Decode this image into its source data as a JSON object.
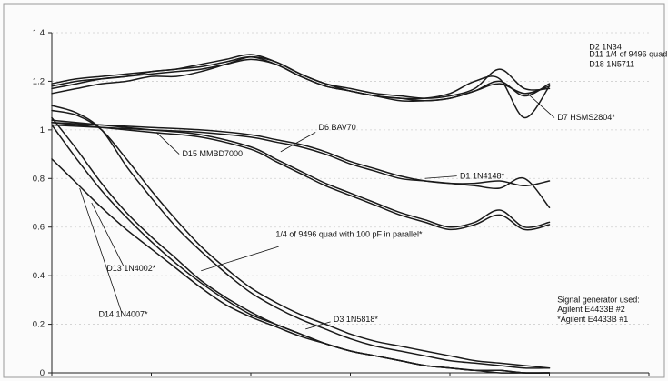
{
  "chart_data": {
    "type": "line",
    "title": "",
    "xlabel": "",
    "ylabel": "",
    "xlim": [
      0,
      600
    ],
    "ylim": [
      0,
      1.4
    ],
    "xticks": [
      0,
      100,
      200,
      300,
      400,
      500,
      600
    ],
    "yticks": [
      0,
      0.2,
      0.4,
      0.6,
      0.8,
      1,
      1.2,
      1.4
    ],
    "ytick_labels": [
      "0",
      "0.2",
      "0.4",
      "0.6",
      "0.8",
      "1",
      "1.2",
      "1.4"
    ],
    "grid": "horizontal",
    "series": [
      {
        "name": "D2 1N34",
        "x": [
          0,
          25,
          50,
          75,
          100,
          125,
          150,
          175,
          200,
          225,
          250,
          275,
          300,
          325,
          350,
          375,
          400,
          425,
          450,
          475,
          500
        ],
        "y": [
          1.15,
          1.17,
          1.19,
          1.2,
          1.22,
          1.22,
          1.24,
          1.27,
          1.3,
          1.28,
          1.23,
          1.19,
          1.17,
          1.15,
          1.14,
          1.13,
          1.14,
          1.17,
          1.25,
          1.17,
          1.17
        ]
      },
      {
        "name": "D11 1/4 of 9496 quad",
        "x": [
          0,
          25,
          50,
          75,
          100,
          125,
          150,
          175,
          200,
          225,
          250,
          275,
          300,
          325,
          350,
          375,
          400,
          425,
          450,
          475,
          500
        ],
        "y": [
          1.17,
          1.19,
          1.21,
          1.22,
          1.23,
          1.24,
          1.25,
          1.27,
          1.29,
          1.27,
          1.22,
          1.18,
          1.16,
          1.14,
          1.12,
          1.12,
          1.13,
          1.16,
          1.19,
          1.15,
          1.18
        ]
      },
      {
        "name": "D18 1N5711",
        "x": [
          0,
          25,
          50,
          75,
          100,
          125,
          150,
          175,
          200,
          225,
          250,
          275,
          300,
          325,
          350,
          375,
          400,
          425,
          450,
          475,
          500
        ],
        "y": [
          1.18,
          1.2,
          1.21,
          1.22,
          1.24,
          1.25,
          1.27,
          1.29,
          1.31,
          1.28,
          1.23,
          1.19,
          1.16,
          1.14,
          1.13,
          1.12,
          1.13,
          1.16,
          1.2,
          1.14,
          1.19
        ]
      },
      {
        "name": "D7 HSMS2804*",
        "x": [
          0,
          25,
          50,
          75,
          100,
          125,
          150,
          175,
          200,
          225,
          250,
          275,
          300,
          325,
          350,
          375,
          400,
          425,
          450,
          475,
          500
        ],
        "y": [
          1.19,
          1.21,
          1.22,
          1.23,
          1.24,
          1.25,
          1.26,
          1.28,
          1.3,
          1.27,
          1.22,
          1.18,
          1.16,
          1.14,
          1.13,
          1.13,
          1.15,
          1.2,
          1.21,
          1.05,
          1.18
        ]
      },
      {
        "name": "D6 BAV70",
        "x": [
          0,
          50,
          100,
          150,
          200,
          225,
          250,
          275,
          300,
          325,
          350,
          375,
          400,
          425,
          450,
          475,
          500
        ],
        "y": [
          1.02,
          1.01,
          1.0,
          0.99,
          0.97,
          0.95,
          0.93,
          0.9,
          0.86,
          0.83,
          0.8,
          0.79,
          0.78,
          0.77,
          0.76,
          0.8,
          0.68
        ]
      },
      {
        "name": "D1 1N4148*",
        "x": [
          0,
          50,
          100,
          150,
          200,
          225,
          250,
          275,
          300,
          325,
          350,
          375,
          400,
          425,
          450,
          475,
          500
        ],
        "y": [
          1.03,
          1.02,
          1.01,
          1.0,
          0.98,
          0.96,
          0.94,
          0.91,
          0.87,
          0.84,
          0.81,
          0.79,
          0.78,
          0.78,
          0.79,
          0.77,
          0.79
        ]
      },
      {
        "name": "D15 MMBD7000",
        "x": [
          0,
          50,
          100,
          150,
          200,
          225,
          250,
          275,
          300,
          325,
          350,
          375,
          400,
          425,
          450,
          475,
          500
        ],
        "y": [
          1.04,
          1.02,
          1.0,
          0.98,
          0.93,
          0.88,
          0.83,
          0.78,
          0.74,
          0.7,
          0.66,
          0.63,
          0.6,
          0.62,
          0.67,
          0.6,
          0.62
        ]
      },
      {
        "name": "D15 MMBD7000 (2)",
        "x": [
          0,
          50,
          100,
          150,
          200,
          225,
          250,
          275,
          300,
          325,
          350,
          375,
          400,
          425,
          450,
          475,
          500
        ],
        "y": [
          1.03,
          1.01,
          0.99,
          0.97,
          0.92,
          0.87,
          0.82,
          0.77,
          0.73,
          0.69,
          0.65,
          0.62,
          0.59,
          0.61,
          0.65,
          0.59,
          0.61
        ]
      },
      {
        "name": "1/4 of 9496 quad with 100 pF in parallel*",
        "x": [
          0,
          25,
          50,
          75,
          100,
          125,
          150,
          175,
          200,
          225,
          250,
          275,
          300,
          325,
          350,
          375,
          400,
          425,
          450,
          475,
          500
        ],
        "y": [
          1.08,
          1.06,
          1.0,
          0.88,
          0.75,
          0.63,
          0.52,
          0.43,
          0.35,
          0.29,
          0.24,
          0.2,
          0.16,
          0.13,
          0.11,
          0.09,
          0.07,
          0.05,
          0.04,
          0.03,
          0.02
        ]
      },
      {
        "name": "D3 1N5818*",
        "x": [
          0,
          25,
          50,
          75,
          100,
          125,
          150,
          175,
          200,
          225,
          250,
          275,
          300,
          325,
          350,
          375,
          400,
          425,
          450,
          475,
          500
        ],
        "y": [
          1.1,
          1.07,
          1.0,
          0.85,
          0.72,
          0.6,
          0.5,
          0.41,
          0.33,
          0.27,
          0.22,
          0.18,
          0.14,
          0.11,
          0.09,
          0.07,
          0.05,
          0.04,
          0.03,
          0.02,
          0.02
        ]
      },
      {
        "name": "D13 1N4002*",
        "x": [
          0,
          25,
          50,
          75,
          100,
          125,
          150,
          175,
          200,
          225,
          250,
          275,
          300,
          325,
          350,
          375,
          400,
          425,
          450,
          475,
          500
        ],
        "y": [
          0.88,
          0.78,
          0.68,
          0.59,
          0.51,
          0.43,
          0.35,
          0.28,
          0.23,
          0.19,
          0.15,
          0.12,
          0.09,
          0.07,
          0.05,
          0.03,
          0.02,
          0.01,
          0.01,
          0.0,
          0.0
        ]
      },
      {
        "name": "D14 1N4007*",
        "x": [
          0,
          25,
          50,
          75,
          100,
          125,
          150,
          175,
          200,
          225,
          250,
          275,
          300,
          325,
          350,
          375,
          400,
          425,
          450,
          475,
          500
        ],
        "y": [
          1.02,
          0.88,
          0.75,
          0.64,
          0.54,
          0.45,
          0.37,
          0.3,
          0.24,
          0.2,
          0.16,
          0.12,
          0.09,
          0.07,
          0.05,
          0.03,
          0.02,
          0.01,
          0.0,
          0.0,
          0.0
        ]
      },
      {
        "name": "D14 1N4007* (2)",
        "x": [
          0,
          25,
          50,
          75,
          100,
          125,
          150,
          175,
          200,
          225,
          250,
          275,
          300,
          325,
          350,
          375,
          400,
          425,
          450,
          475,
          500
        ],
        "y": [
          1.05,
          0.92,
          0.78,
          0.66,
          0.56,
          0.47,
          0.38,
          0.31,
          0.25,
          0.2,
          0.16,
          0.12,
          0.09,
          0.07,
          0.05,
          0.03,
          0.02,
          0.01,
          0.01,
          0.0,
          0.0
        ]
      }
    ],
    "annotations": [
      {
        "text": "D2 1N34",
        "x": 540,
        "y": 1.33
      },
      {
        "text": "D11 1/4 of 9496 quad",
        "x": 540,
        "y": 1.3
      },
      {
        "text": "D18 1N5711",
        "x": 540,
        "y": 1.26
      },
      {
        "text": "D7 HSMS2804*",
        "x": 508,
        "y": 1.04
      },
      {
        "text": "D6 BAV70",
        "x": 268,
        "y": 1.0
      },
      {
        "text": "D1 1N4148*",
        "x": 410,
        "y": 0.8
      },
      {
        "text": "D15 MMBD7000",
        "x": 131,
        "y": 0.89
      },
      {
        "text": "D13 1N4002*",
        "x": 55,
        "y": 0.42
      },
      {
        "text": "D14 1N4007*",
        "x": 47,
        "y": 0.23
      },
      {
        "text": "1/4 of 9496 quad with 100 pF in parallel*",
        "x": 225,
        "y": 0.56
      },
      {
        "text": "D3 1N5818*",
        "x": 283,
        "y": 0.21
      },
      {
        "text": "Signal generator used:",
        "x": 508,
        "y": 0.29
      },
      {
        "text": "Agilent E4433B #2",
        "x": 508,
        "y": 0.25
      },
      {
        "text": "*Agilent E4433B #1",
        "x": 508,
        "y": 0.21
      }
    ]
  }
}
